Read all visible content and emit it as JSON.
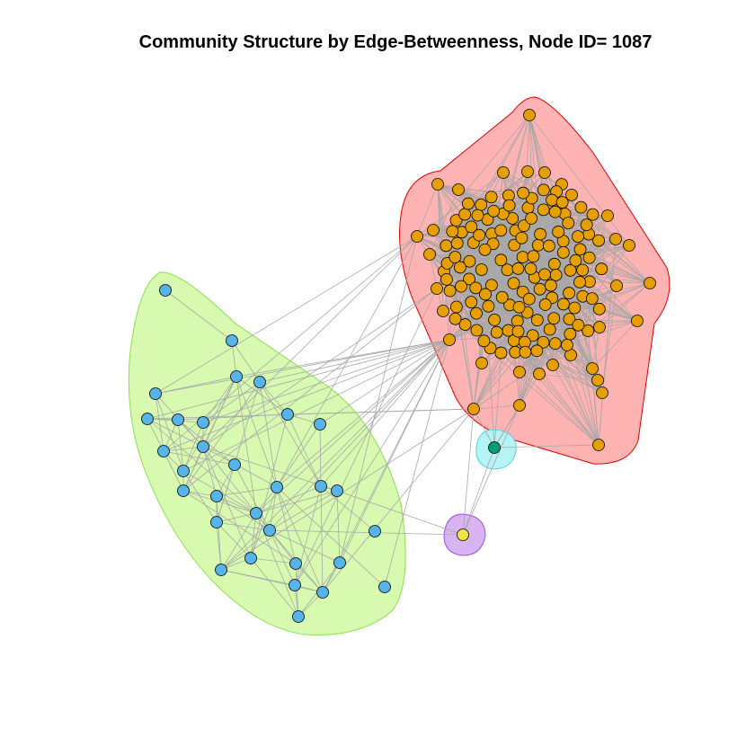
{
  "title": "Community Structure by Edge-Betweenness, Node ID= 1087",
  "colors": {
    "community_red_fill": "#ffb3b3",
    "community_red_border": "#e00000",
    "community_green_fill": "#d8f9b0",
    "community_green_border": "#8be04a",
    "community_cyan_fill": "#b6f3f5",
    "community_cyan_border": "#46dde4",
    "community_purple_fill": "#d8b4f3",
    "community_purple_border": "#9b4fe0",
    "node_orange": "#e69f00",
    "node_blue": "#56b4e9",
    "node_green": "#009e73",
    "node_yellow": "#f0e442",
    "edge": "#a8a8a8"
  },
  "communities": [
    {
      "name": "orange",
      "node_count": 160
    },
    {
      "name": "blue",
      "node_count": 38
    },
    {
      "name": "green",
      "node_count": 1
    },
    {
      "name": "yellow",
      "node_count": 1
    }
  ]
}
